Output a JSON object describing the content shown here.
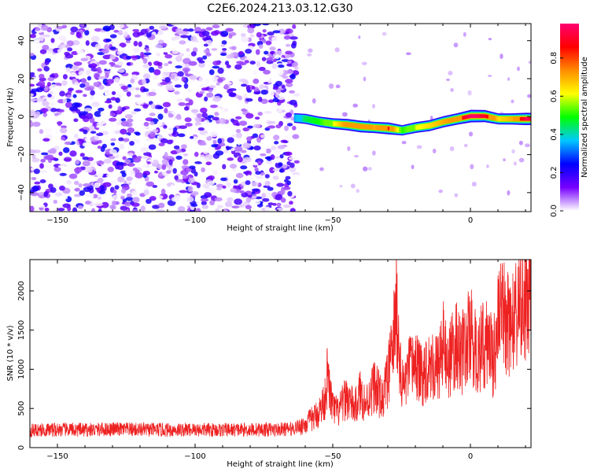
{
  "title": "C2E6.2024.213.03.12.G30",
  "chart_data": [
    {
      "type": "heatmap",
      "xlabel": "Height of straight line (km)",
      "ylabel": "Frequency (Hz)",
      "xlim": [
        -160,
        22
      ],
      "ylim": [
        -50,
        49
      ],
      "xticks": [
        -150,
        -100,
        -50,
        0
      ],
      "yticks": [
        -40,
        -20,
        0,
        20,
        40
      ],
      "grid": false,
      "noise_region": {
        "x_range": [
          -160,
          -63
        ],
        "y_range": [
          -50,
          49
        ],
        "amplitude_range": [
          0.0,
          0.25
        ]
      },
      "signal_ridge": {
        "x": [
          -64,
          -60,
          -55,
          -50,
          -45,
          -40,
          -35,
          -30,
          -25,
          -20,
          -15,
          -10,
          -5,
          0,
          5,
          10,
          15,
          20,
          22
        ],
        "frequency": [
          -1,
          -1.5,
          -3,
          -4,
          -4.5,
          -5.5,
          -6,
          -6.5,
          -7.5,
          -6,
          -5,
          -3,
          -1.5,
          0,
          0,
          -1.5,
          -1.5,
          -1.5,
          -1.5
        ],
        "amplitude": [
          0.35,
          0.45,
          0.5,
          0.6,
          0.75,
          0.8,
          0.7,
          0.85,
          0.5,
          0.6,
          0.65,
          0.7,
          0.75,
          1.0,
          0.9,
          0.65,
          0.7,
          0.95,
          0.9
        ]
      },
      "colorbar": {
        "label": "Normalized spectral amplitude",
        "range": [
          0.0,
          0.98
        ],
        "ticks": [
          0.0,
          0.2,
          0.4,
          0.6,
          0.8
        ],
        "colors": [
          "#ffffff",
          "#7700ff",
          "#0000ff",
          "#00c8ff",
          "#00ff00",
          "#ffff00",
          "#ff8c00",
          "#ff0000",
          "#ff0070"
        ]
      }
    },
    {
      "type": "line",
      "xlabel": "Height of straight line (km)",
      "ylabel": "SNR (10 * v/v)",
      "xlim": [
        -160,
        22
      ],
      "ylim": [
        0,
        2400
      ],
      "xticks": [
        -150,
        -100,
        -50,
        0
      ],
      "yticks": [
        0,
        500,
        1000,
        1500,
        2000
      ],
      "grid": false,
      "series": [
        {
          "color": "#ee2222",
          "x": [
            -160,
            -150,
            -140,
            -130,
            -120,
            -110,
            -100,
            -90,
            -80,
            -70,
            -65,
            -60,
            -57,
            -55,
            -53,
            -52,
            -50,
            -48,
            -45,
            -42,
            -40,
            -38,
            -35,
            -32,
            -30,
            -28,
            -27,
            -25,
            -22,
            -20,
            -18,
            -15,
            -12,
            -10,
            -8,
            -5,
            -3,
            0,
            2,
            5,
            7,
            8,
            10,
            12,
            15,
            18,
            20,
            22
          ],
          "y": [
            220,
            230,
            225,
            235,
            230,
            225,
            230,
            225,
            230,
            230,
            240,
            300,
            380,
            450,
            600,
            900,
            500,
            450,
            650,
            500,
            700,
            550,
            800,
            600,
            900,
            1300,
            1900,
            750,
            1000,
            1100,
            900,
            1100,
            1000,
            1300,
            1100,
            1300,
            1200,
            1450,
            1200,
            1300,
            1350,
            1100,
            1550,
            1700,
            1550,
            1750,
            1850,
            1900
          ]
        }
      ]
    }
  ]
}
